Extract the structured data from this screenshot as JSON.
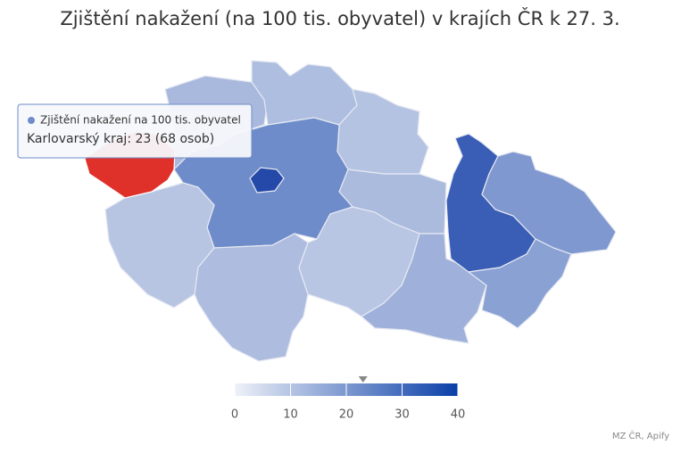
{
  "chart_data": {
    "type": "choropleth",
    "title": "Zjištění nakažení (na 100 tis. obyvatel) v krajích ČR k 27. 3.",
    "tooltip": {
      "series": "Zjištění nakažení na 100 tis. obyvatel",
      "text": "Karlovarský kraj: 23 (68 osob)"
    },
    "hover_value": 23,
    "hover_color": "#e0302a",
    "clim": [
      0,
      40
    ],
    "cticks": [
      0,
      10,
      20,
      30,
      40
    ],
    "color_low": "#eef1f8",
    "color_high": "#0a3fa8",
    "credits": "MZ ČR, Apify"
  }
}
